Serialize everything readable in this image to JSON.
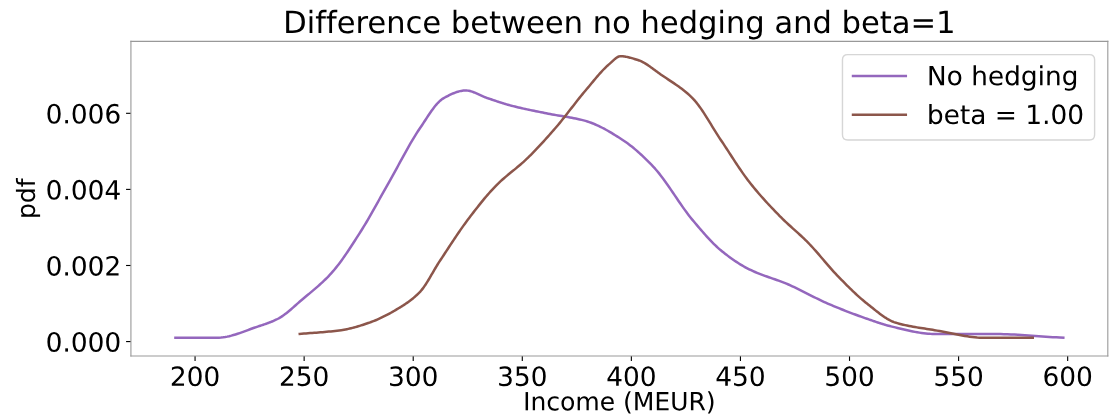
{
  "chart_data": {
    "type": "line",
    "title": "Difference between no hedging and beta=1",
    "xlabel": "Income (MEUR)",
    "ylabel": "pdf",
    "xlim": [
      170.6,
      618.4
    ],
    "ylim": [
      -0.00038,
      0.00789
    ],
    "xticks": [
      200,
      250,
      300,
      350,
      400,
      450,
      500,
      550,
      600
    ],
    "yticks": [
      {
        "value": 0,
        "label": "0.000"
      },
      {
        "value": 0.002,
        "label": "0.002"
      },
      {
        "value": 0.004,
        "label": "0.004"
      },
      {
        "value": 0.006,
        "label": "0.006"
      }
    ],
    "grid": false,
    "legend": "top right",
    "marker": "none",
    "line_style": "solid",
    "series": [
      {
        "name": "No hedging",
        "color": "#9467bd",
        "x": [
          191,
          210,
          229,
          238,
          249,
          262.5,
          276,
          289,
          303,
          314,
          324,
          334,
          345,
          361,
          379,
          396,
          410,
          428,
          441,
          454,
          472,
          490,
          508,
          519,
          539,
          566,
          598
        ],
        "values": [
          0.0001,
          0.0001,
          0.0004,
          0.0006,
          0.0011,
          0.0018,
          0.0029,
          0.0042,
          0.0056,
          0.0064,
          0.0066,
          0.0064,
          0.0062,
          0.006,
          0.0058,
          0.0053,
          0.0046,
          0.0032,
          0.0024,
          0.0019,
          0.0015,
          0.001,
          0.0006,
          0.0004,
          0.0002,
          0.0002,
          0.0001
        ]
      },
      {
        "name": "beta = 1.00",
        "color": "#8c564b",
        "x": [
          248,
          267,
          280,
          294,
          303,
          312,
          325,
          338,
          352,
          365,
          379,
          390,
          395,
          403,
          414,
          428,
          441,
          454,
          468,
          481,
          495,
          508,
          521,
          539,
          562,
          584
        ],
        "values": [
          0.0002,
          0.0003,
          0.0005,
          0.0009,
          0.0013,
          0.0021,
          0.0032,
          0.0041,
          0.0048,
          0.0056,
          0.0066,
          0.0073,
          0.0075,
          0.0074,
          0.007,
          0.0064,
          0.0053,
          0.0042,
          0.0033,
          0.0026,
          0.0017,
          0.001,
          0.0005,
          0.0003,
          0.0001,
          0.0001
        ]
      }
    ]
  }
}
